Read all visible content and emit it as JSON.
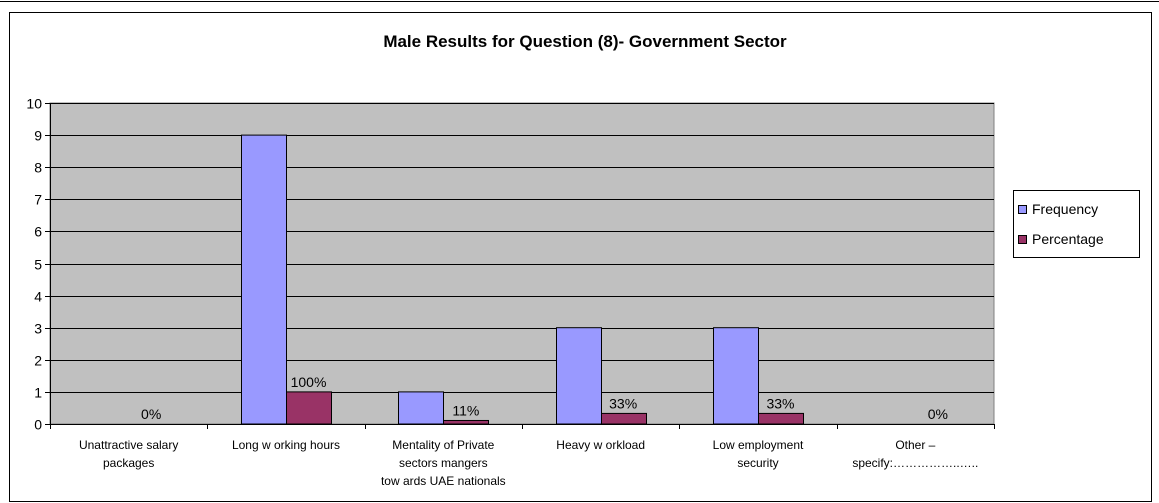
{
  "chart_data": {
    "type": "bar",
    "title": "Male Results for Question (8)- Government Sector",
    "categories": [
      [
        "Unattractive salary",
        "packages"
      ],
      [
        "Long w orking hours"
      ],
      [
        "Mentality of Private",
        "sectors mangers",
        "tow ards UAE nationals"
      ],
      [
        "Heavy w orkload"
      ],
      [
        "Low employment",
        "security"
      ],
      [
        "Other –",
        "specify:……………..….."
      ]
    ],
    "series": [
      {
        "name": "Frequency",
        "values": [
          0,
          9,
          1,
          3,
          3,
          0
        ],
        "color": "#9999ff"
      },
      {
        "name": "Percentage",
        "values": [
          0,
          1,
          0.11,
          0.33,
          0.33,
          0
        ],
        "color": "#993366",
        "data_labels": [
          "0%",
          "100%",
          "11%",
          "33%",
          "33%",
          "0%"
        ]
      }
    ],
    "yticks": [
      "0",
      "1",
      "2",
      "3",
      "4",
      "5",
      "6",
      "7",
      "8",
      "9",
      "10"
    ],
    "ylim": [
      0,
      10
    ],
    "grid": true,
    "plot_background": "#c0c0c0",
    "legend": "right"
  }
}
